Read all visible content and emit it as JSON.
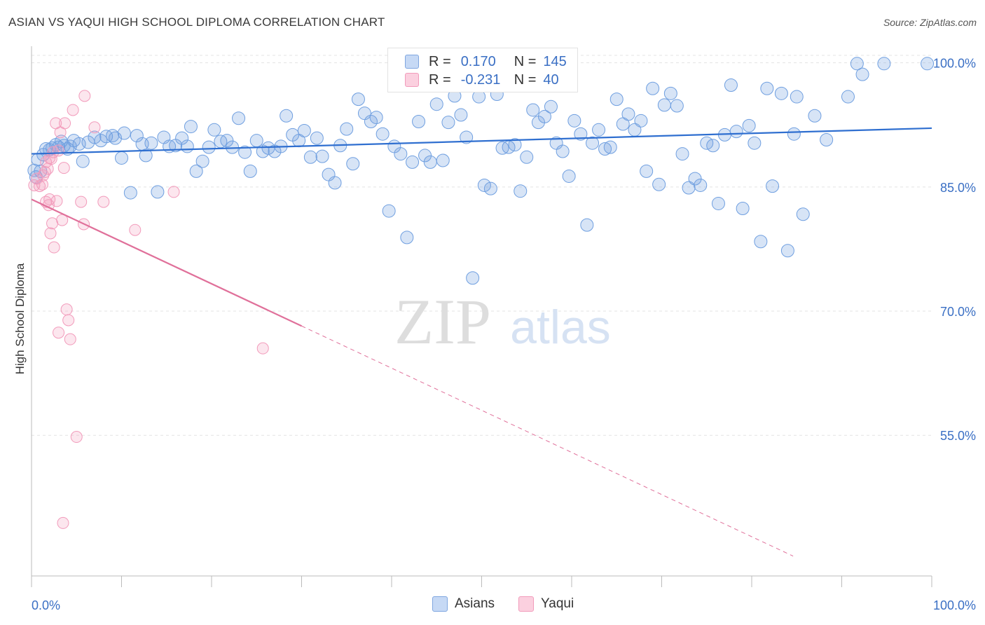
{
  "title": "ASIAN VS YAQUI HIGH SCHOOL DIPLOMA CORRELATION CHART",
  "source": "Source: ZipAtlas.com",
  "watermark": {
    "left": "ZIP",
    "right": "atlas"
  },
  "legend": {
    "rows": [
      {
        "r_label": "R =",
        "r_value": "0.170",
        "n_label": "N =",
        "n_value": "145"
      },
      {
        "r_label": "R =",
        "r_value": "-0.231",
        "n_label": "N =",
        "n_value": "40"
      }
    ]
  },
  "bottom_legend": {
    "asians": "Asians",
    "yaqui": "Yaqui"
  },
  "chart_data": {
    "type": "scatter",
    "title": "ASIAN VS YAQUI HIGH SCHOOL DIPLOMA CORRELATION CHART",
    "xlabel": "",
    "ylabel": "High School Diploma",
    "xlim": [
      0,
      100
    ],
    "ylim": [
      38,
      102
    ],
    "x_tick_labels": [
      "0.0%",
      "100.0%"
    ],
    "y_ticks": [
      55,
      70,
      85,
      100
    ],
    "y_tick_labels": [
      "55.0%",
      "70.0%",
      "85.0%",
      "100.0%"
    ],
    "grid": true,
    "colors": {
      "asians": "#6f9fe0",
      "asians_line": "#2f6fd0",
      "yaqui": "#f29bbb",
      "yaqui_line": "#e0709a",
      "tick_label": "#3a6fc4"
    },
    "series": [
      {
        "name": "Asians",
        "trend": {
          "x": [
            0,
            100
          ],
          "y": [
            89.0,
            92.1
          ]
        },
        "points": [
          [
            0.3,
            87.0
          ],
          [
            0.5,
            86.2
          ],
          [
            0.7,
            88.3
          ],
          [
            1.0,
            86.9
          ],
          [
            1.3,
            88.9
          ],
          [
            1.6,
            89.6
          ],
          [
            2.0,
            89.5
          ],
          [
            2.3,
            89.7
          ],
          [
            2.7,
            90.1
          ],
          [
            3.0,
            89.8
          ],
          [
            3.3,
            90.5
          ],
          [
            3.6,
            90.0
          ],
          [
            4.0,
            89.6
          ],
          [
            4.3,
            89.9
          ],
          [
            4.7,
            90.6
          ],
          [
            5.3,
            90.2
          ],
          [
            5.7,
            88.1
          ],
          [
            6.3,
            90.4
          ],
          [
            7.0,
            91.0
          ],
          [
            7.7,
            90.6
          ],
          [
            8.3,
            91.1
          ],
          [
            9.0,
            91.2
          ],
          [
            9.3,
            90.9
          ],
          [
            10.0,
            88.5
          ],
          [
            10.3,
            91.5
          ],
          [
            11.0,
            84.3
          ],
          [
            11.7,
            91.2
          ],
          [
            12.3,
            90.2
          ],
          [
            12.7,
            88.8
          ],
          [
            13.3,
            90.3
          ],
          [
            14.0,
            84.4
          ],
          [
            14.7,
            91.0
          ],
          [
            15.3,
            89.9
          ],
          [
            16.0,
            90.0
          ],
          [
            16.7,
            90.9
          ],
          [
            17.3,
            89.9
          ],
          [
            17.7,
            92.3
          ],
          [
            18.3,
            86.9
          ],
          [
            19.0,
            88.1
          ],
          [
            19.7,
            89.8
          ],
          [
            20.3,
            91.9
          ],
          [
            21.0,
            90.5
          ],
          [
            21.7,
            90.6
          ],
          [
            22.3,
            89.8
          ],
          [
            23.0,
            93.3
          ],
          [
            23.7,
            89.2
          ],
          [
            24.3,
            86.9
          ],
          [
            25.0,
            90.6
          ],
          [
            25.7,
            89.3
          ],
          [
            26.3,
            89.7
          ],
          [
            27.0,
            89.3
          ],
          [
            27.7,
            89.9
          ],
          [
            28.3,
            93.6
          ],
          [
            29.0,
            91.3
          ],
          [
            29.7,
            90.6
          ],
          [
            30.3,
            91.8
          ],
          [
            31.0,
            88.6
          ],
          [
            31.7,
            90.9
          ],
          [
            32.3,
            88.7
          ],
          [
            33.0,
            86.5
          ],
          [
            33.7,
            85.5
          ],
          [
            34.3,
            90.0
          ],
          [
            35.0,
            92.0
          ],
          [
            35.7,
            87.8
          ],
          [
            36.3,
            95.6
          ],
          [
            37.0,
            93.9
          ],
          [
            37.7,
            92.9
          ],
          [
            38.3,
            93.4
          ],
          [
            39.0,
            91.4
          ],
          [
            39.7,
            82.1
          ],
          [
            40.3,
            89.9
          ],
          [
            41.0,
            89.0
          ],
          [
            41.7,
            78.9
          ],
          [
            42.3,
            88.0
          ],
          [
            43.0,
            92.9
          ],
          [
            43.7,
            88.8
          ],
          [
            44.3,
            88.0
          ],
          [
            45.0,
            95.0
          ],
          [
            45.7,
            88.2
          ],
          [
            46.3,
            92.8
          ],
          [
            47.0,
            96.0
          ],
          [
            47.7,
            93.7
          ],
          [
            48.3,
            91.0
          ],
          [
            49.0,
            74.0
          ],
          [
            49.7,
            95.9
          ],
          [
            50.3,
            85.2
          ],
          [
            51.0,
            84.8
          ],
          [
            51.7,
            96.2
          ],
          [
            52.3,
            89.7
          ],
          [
            53.0,
            89.8
          ],
          [
            53.7,
            90.1
          ],
          [
            54.3,
            84.5
          ],
          [
            55.0,
            88.6
          ],
          [
            55.7,
            94.3
          ],
          [
            56.3,
            92.8
          ],
          [
            57.0,
            93.5
          ],
          [
            57.7,
            94.7
          ],
          [
            58.3,
            90.3
          ],
          [
            59.0,
            89.3
          ],
          [
            59.7,
            86.3
          ],
          [
            60.3,
            93.0
          ],
          [
            61.0,
            91.4
          ],
          [
            61.7,
            80.4
          ],
          [
            62.3,
            90.3
          ],
          [
            63.0,
            91.9
          ],
          [
            63.7,
            89.6
          ],
          [
            64.3,
            89.8
          ],
          [
            65.0,
            95.6
          ],
          [
            65.7,
            92.6
          ],
          [
            66.3,
            93.8
          ],
          [
            67.0,
            91.9
          ],
          [
            67.7,
            93.0
          ],
          [
            68.3,
            86.9
          ],
          [
            69.0,
            96.9
          ],
          [
            69.7,
            85.3
          ],
          [
            70.3,
            94.9
          ],
          [
            71.0,
            96.3
          ],
          [
            71.7,
            94.8
          ],
          [
            72.3,
            89.0
          ],
          [
            73.0,
            84.9
          ],
          [
            73.7,
            86.0
          ],
          [
            74.3,
            85.2
          ],
          [
            75.0,
            90.3
          ],
          [
            75.7,
            90.0
          ],
          [
            76.3,
            83.0
          ],
          [
            77.0,
            91.3
          ],
          [
            77.7,
            97.3
          ],
          [
            78.3,
            91.7
          ],
          [
            79.0,
            82.4
          ],
          [
            79.7,
            92.4
          ],
          [
            80.3,
            90.3
          ],
          [
            81.0,
            78.4
          ],
          [
            81.7,
            96.9
          ],
          [
            82.3,
            85.1
          ],
          [
            83.3,
            96.3
          ],
          [
            84.0,
            77.3
          ],
          [
            84.7,
            91.4
          ],
          [
            85.0,
            95.9
          ],
          [
            85.7,
            81.7
          ],
          [
            87.0,
            93.6
          ],
          [
            88.3,
            90.7
          ],
          [
            90.7,
            95.9
          ],
          [
            91.7,
            99.9
          ],
          [
            92.3,
            98.6
          ],
          [
            94.7,
            99.9
          ],
          [
            99.5,
            99.9
          ]
        ]
      },
      {
        "name": "Yaqui",
        "trend": {
          "x": [
            0,
            30
          ],
          "y": [
            83.5,
            68.2
          ]
        },
        "trend_extension": {
          "x": [
            30,
            84.6
          ],
          "y": [
            68.2,
            40.4
          ]
        },
        "points": [
          [
            0.3,
            85.2
          ],
          [
            0.6,
            86.0
          ],
          [
            0.9,
            85.1
          ],
          [
            1.2,
            85.3
          ],
          [
            1.3,
            86.4
          ],
          [
            1.5,
            86.8
          ],
          [
            1.6,
            88.0
          ],
          [
            1.8,
            87.2
          ],
          [
            2.0,
            88.5
          ],
          [
            2.2,
            88.4
          ],
          [
            2.4,
            89.2
          ],
          [
            1.6,
            83.2
          ],
          [
            1.9,
            82.8
          ],
          [
            2.0,
            83.5
          ],
          [
            2.1,
            79.4
          ],
          [
            2.3,
            80.6
          ],
          [
            2.5,
            77.7
          ],
          [
            2.7,
            92.7
          ],
          [
            2.8,
            83.3
          ],
          [
            3.0,
            89.4
          ],
          [
            3.0,
            67.4
          ],
          [
            3.2,
            91.6
          ],
          [
            3.4,
            81.0
          ],
          [
            3.5,
            44.4
          ],
          [
            3.6,
            87.3
          ],
          [
            3.7,
            92.7
          ],
          [
            3.9,
            70.2
          ],
          [
            4.1,
            68.9
          ],
          [
            4.3,
            66.6
          ],
          [
            4.6,
            94.3
          ],
          [
            5.0,
            54.8
          ],
          [
            5.5,
            83.2
          ],
          [
            5.8,
            80.5
          ],
          [
            5.9,
            96.0
          ],
          [
            7.0,
            92.2
          ],
          [
            8.0,
            83.2
          ],
          [
            11.5,
            79.8
          ],
          [
            15.8,
            84.4
          ],
          [
            25.7,
            65.5
          ]
        ]
      }
    ]
  }
}
